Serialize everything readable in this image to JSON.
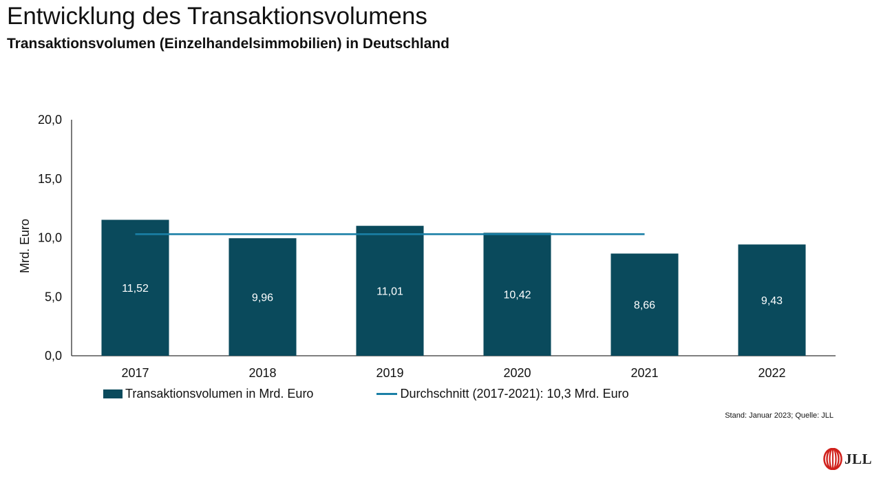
{
  "header": {
    "title": "Entwicklung des Transaktionsvolumens",
    "subtitle": "Transaktionsvolumen (Einzelhandelsimmobilien) in Deutschland"
  },
  "chart_data": {
    "type": "bar",
    "categories": [
      "2017",
      "2018",
      "2019",
      "2020",
      "2021",
      "2022"
    ],
    "series": [
      {
        "name": "Transaktionsvolumen in Mrd. Euro",
        "type": "bar",
        "values": [
          11.52,
          9.96,
          11.01,
          10.42,
          8.66,
          9.43
        ],
        "labels": [
          "11,52",
          "9,96",
          "11,01",
          "10,42",
          "8,66",
          "9,43"
        ],
        "color": "#0a4a5c"
      },
      {
        "name": "Durchschnitt (2017-2021): 10,3 Mrd. Euro",
        "type": "line",
        "value": 10.3,
        "x_range": [
          "2017",
          "2021"
        ],
        "color": "#1a7fa6"
      }
    ],
    "ylabel": "Mrd. Euro",
    "xlabel": "",
    "ylim": [
      0,
      20
    ],
    "yticks": [
      "0,0",
      "5,0",
      "10,0",
      "15,0",
      "20,0"
    ],
    "grid": false,
    "legend_position": "bottom-left"
  },
  "footer": {
    "source": "Stand: Januar 2023; Quelle: JLL",
    "logo_text": "JLL",
    "logo_icon": "jll-logo-icon",
    "logo_color": "#d0211c"
  }
}
